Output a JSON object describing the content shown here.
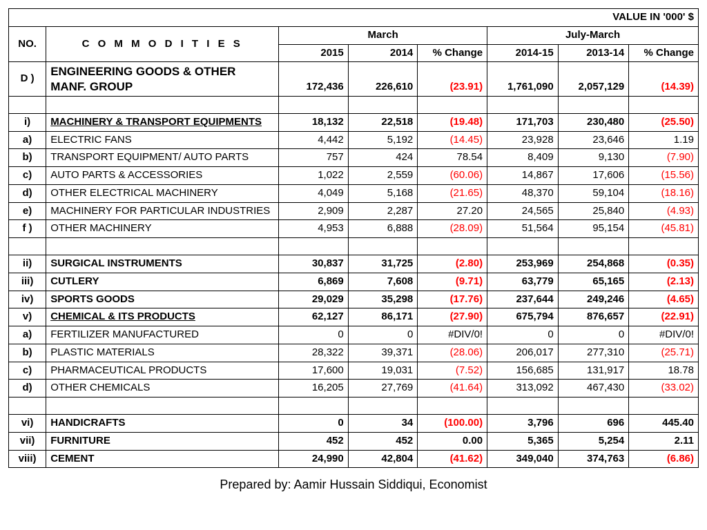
{
  "top_note": "VALUE IN '000' $",
  "headers": {
    "no": "NO.",
    "commodities": "C O M M O D I T I E S",
    "march": "March",
    "july_march": "July-March",
    "y2015": "2015",
    "y2014": "2014",
    "pct_change": "% Change",
    "y2014_15": "2014-15",
    "y2013_14": "2013-14"
  },
  "rows": [
    {
      "no": "D )",
      "label": "ENGINEERING GOODS & OTHER MANF. GROUP",
      "bold": true,
      "underline": false,
      "big": true,
      "v": [
        "172,436",
        "226,610",
        "(23.91)",
        "1,761,090",
        "2,057,129",
        "(14.39)"
      ],
      "neg": [
        false,
        false,
        true,
        false,
        false,
        true
      ]
    },
    {
      "blank": true
    },
    {
      "no": "i)",
      "label": "MACHINERY & TRANSPORT EQUIPMENTS",
      "bold": true,
      "underline": true,
      "v": [
        "18,132",
        "22,518",
        "(19.48)",
        "171,703",
        "230,480",
        "(25.50)"
      ],
      "neg": [
        false,
        false,
        true,
        false,
        false,
        true
      ]
    },
    {
      "no": "a)",
      "label": "ELECTRIC FANS",
      "v": [
        "4,442",
        "5,192",
        "(14.45)",
        "23,928",
        "23,646",
        "1.19"
      ],
      "neg": [
        false,
        false,
        true,
        false,
        false,
        false
      ]
    },
    {
      "no": "b)",
      "label": "TRANSPORT EQUIPMENT/ AUTO PARTS",
      "v": [
        "757",
        "424",
        "78.54",
        "8,409",
        "9,130",
        "(7.90)"
      ],
      "neg": [
        false,
        false,
        false,
        false,
        false,
        true
      ]
    },
    {
      "no": "c)",
      "label": "AUTO PARTS & ACCESSORIES",
      "v": [
        "1,022",
        "2,559",
        "(60.06)",
        "14,867",
        "17,606",
        "(15.56)"
      ],
      "neg": [
        false,
        false,
        true,
        false,
        false,
        true
      ]
    },
    {
      "no": "d)",
      "label": "OTHER ELECTRICAL MACHINERY",
      "v": [
        "4,049",
        "5,168",
        "(21.65)",
        "48,370",
        "59,104",
        "(18.16)"
      ],
      "neg": [
        false,
        false,
        true,
        false,
        false,
        true
      ]
    },
    {
      "no": "e)",
      "label": "MACHINERY FOR PARTICULAR INDUSTRIES",
      "v": [
        "2,909",
        "2,287",
        "27.20",
        "24,565",
        "25,840",
        "(4.93)"
      ],
      "neg": [
        false,
        false,
        false,
        false,
        false,
        true
      ]
    },
    {
      "no": "f )",
      "label": "OTHER MACHINERY",
      "v": [
        "4,953",
        "6,888",
        "(28.09)",
        "51,564",
        "95,154",
        "(45.81)"
      ],
      "neg": [
        false,
        false,
        true,
        false,
        false,
        true
      ]
    },
    {
      "blank": true
    },
    {
      "no": "ii)",
      "label": "SURGICAL INSTRUMENTS",
      "bold": true,
      "v": [
        "30,837",
        "31,725",
        "(2.80)",
        "253,969",
        "254,868",
        "(0.35)"
      ],
      "neg": [
        false,
        false,
        true,
        false,
        false,
        true
      ]
    },
    {
      "no": "iii)",
      "label": "CUTLERY",
      "bold": true,
      "v": [
        "6,869",
        "7,608",
        "(9.71)",
        "63,779",
        "65,165",
        "(2.13)"
      ],
      "neg": [
        false,
        false,
        true,
        false,
        false,
        true
      ]
    },
    {
      "no": "iv)",
      "label": "SPORTS GOODS",
      "bold": true,
      "v": [
        "29,029",
        "35,298",
        "(17.76)",
        "237,644",
        "249,246",
        "(4.65)"
      ],
      "neg": [
        false,
        false,
        true,
        false,
        false,
        true
      ]
    },
    {
      "no": "v)",
      "label": "CHEMICAL & ITS PRODUCTS",
      "bold": true,
      "underline": true,
      "v": [
        "62,127",
        "86,171",
        "(27.90)",
        "675,794",
        "876,657",
        "(22.91)"
      ],
      "neg": [
        false,
        false,
        true,
        false,
        false,
        true
      ]
    },
    {
      "no": "a)",
      "label": "FERTILIZER MANUFACTURED",
      "v": [
        "0",
        "0",
        "#DIV/0!",
        "0",
        "0",
        "#DIV/0!"
      ],
      "neg": [
        false,
        false,
        false,
        false,
        false,
        false
      ]
    },
    {
      "no": "b)",
      "label": "PLASTIC MATERIALS",
      "v": [
        "28,322",
        "39,371",
        "(28.06)",
        "206,017",
        "277,310",
        "(25.71)"
      ],
      "neg": [
        false,
        false,
        true,
        false,
        false,
        true
      ]
    },
    {
      "no": "c)",
      "label": "PHARMACEUTICAL PRODUCTS",
      "v": [
        "17,600",
        "19,031",
        "(7.52)",
        "156,685",
        "131,917",
        "18.78"
      ],
      "neg": [
        false,
        false,
        true,
        false,
        false,
        false
      ]
    },
    {
      "no": "d)",
      "label": "OTHER CHEMICALS",
      "v": [
        "16,205",
        "27,769",
        "(41.64)",
        "313,092",
        "467,430",
        "(33.02)"
      ],
      "neg": [
        false,
        false,
        true,
        false,
        false,
        true
      ]
    },
    {
      "blank": true
    },
    {
      "no": "vi)",
      "label": "HANDICRAFTS",
      "bold": true,
      "v": [
        "0",
        "34",
        "(100.00)",
        "3,796",
        "696",
        "445.40"
      ],
      "neg": [
        false,
        false,
        true,
        false,
        false,
        false
      ]
    },
    {
      "no": "vii)",
      "label": "FURNITURE",
      "bold": true,
      "v": [
        "452",
        "452",
        "0.00",
        "5,365",
        "5,254",
        "2.11"
      ],
      "neg": [
        false,
        false,
        false,
        false,
        false,
        false
      ]
    },
    {
      "no": "viii)",
      "label": "CEMENT",
      "bold": true,
      "v": [
        "24,990",
        "42,804",
        "(41.62)",
        "349,040",
        "374,763",
        "(6.86)"
      ],
      "neg": [
        false,
        false,
        true,
        false,
        false,
        true
      ]
    }
  ],
  "footer": "Prepared by: Aamir Hussain Siddiqui, Economist"
}
